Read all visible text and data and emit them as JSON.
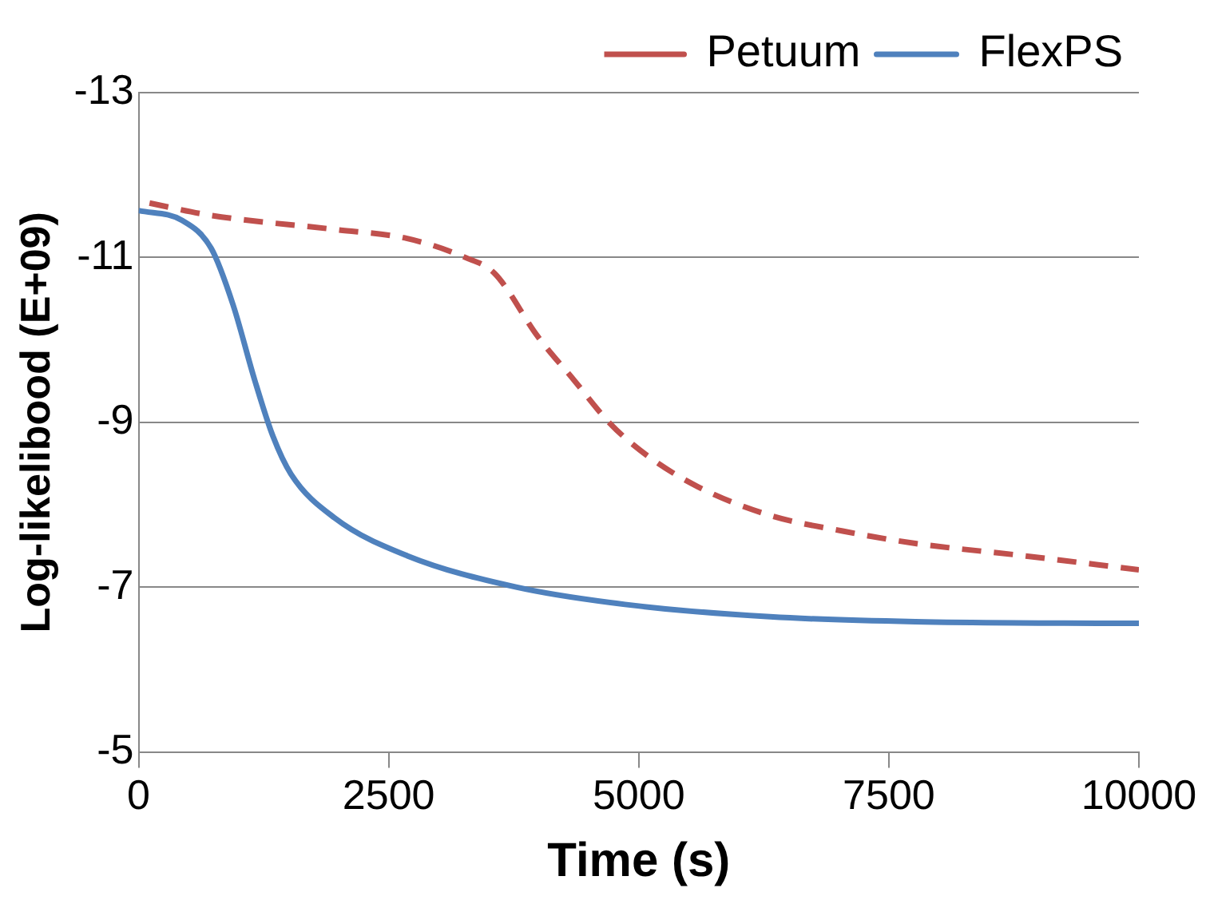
{
  "chart_data": {
    "type": "line",
    "xlabel": "Time (s)",
    "ylabel": "Log-likelibood (E+09)",
    "xlim": [
      0,
      10000
    ],
    "xticks": [
      0,
      2500,
      5000,
      7500,
      10000
    ],
    "ylim": [
      -5,
      -13
    ],
    "yticks": [
      -13,
      -11,
      -9,
      -7,
      -5
    ],
    "grid": "y",
    "legend": "top right",
    "marker": "none",
    "series": [
      {
        "name": "Petuum",
        "color": "#c0504d",
        "line_style": "dashed",
        "x": [
          109,
          726,
          1959,
          2685,
          3266,
          3556,
          3991,
          4354,
          4717,
          5080,
          5588,
          6313,
          7039,
          7765,
          8853,
          10000
        ],
        "values": [
          -11.66,
          -11.51,
          -11.34,
          -11.23,
          -11.0,
          -10.81,
          -10.04,
          -9.51,
          -8.98,
          -8.6,
          -8.22,
          -7.87,
          -7.68,
          -7.53,
          -7.38,
          -7.21
        ]
      },
      {
        "name": "FlexPS",
        "color": "#4f81bd",
        "line_style": "solid",
        "x": [
          0,
          435,
          726,
          943,
          1161,
          1343,
          1524,
          1959,
          2685,
          3774,
          4862,
          6313,
          7765,
          10000
        ],
        "values": [
          -11.57,
          -11.45,
          -11.11,
          -10.43,
          -9.51,
          -8.83,
          -8.37,
          -7.84,
          -7.38,
          -7.0,
          -6.79,
          -6.64,
          -6.58,
          -6.56
        ]
      }
    ]
  }
}
